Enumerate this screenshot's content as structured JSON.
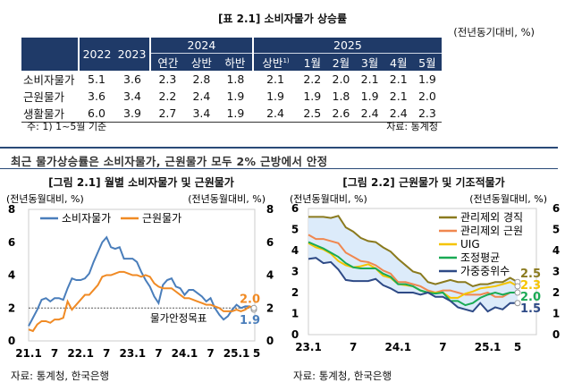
{
  "table": {
    "title": "[표 2.1] 소비자물가 상승률",
    "unit": "(전년동기대비, %)",
    "header": {
      "y2022": "2022",
      "y2023": "2023",
      "y2024": "2024",
      "y2025": "2025",
      "sub2024": [
        "연간",
        "상반",
        "하반"
      ],
      "sub2025": [
        "상반",
        "1월",
        "2월",
        "3월",
        "4월",
        "5월"
      ],
      "sup": "1)"
    },
    "rows": [
      {
        "label": "소비자물가",
        "values": [
          "5.1",
          "3.6",
          "2.3",
          "2.8",
          "1.8",
          "2.1",
          "2.2",
          "2.0",
          "2.1",
          "2.1",
          "1.9"
        ]
      },
      {
        "label": "근원물가",
        "values": [
          "3.6",
          "3.4",
          "2.2",
          "2.4",
          "1.9",
          "1.9",
          "1.9",
          "1.8",
          "1.9",
          "2.1",
          "2.0"
        ]
      },
      {
        "label": "생활물가",
        "values": [
          "6.0",
          "3.9",
          "2.7",
          "3.4",
          "1.9",
          "2.4",
          "2.5",
          "2.6",
          "2.4",
          "2.4",
          "2.3"
        ]
      }
    ],
    "note": "주: 1) 1~5월 기준",
    "source": "자료: 통계청"
  },
  "section_title": "최근 물가상승률은 소비자물가, 근원물가 모두 2% 근방에서 안정",
  "chart_data": [
    {
      "type": "line",
      "title": "[그림 2.1] 월별 소비자물가 및 근원물가",
      "ylabel_left": "(전년동월대비, %)",
      "ylabel_right": "(전년동월대비, %)",
      "ylim": [
        0,
        8
      ],
      "yticks": [
        "0",
        "2",
        "4",
        "6",
        "8"
      ],
      "x_start": "2021-01",
      "x_end": "2025-05",
      "xtick_labels": [
        "21.1",
        "7",
        "22.1",
        "7",
        "23.1",
        "7",
        "24.1",
        "7",
        "25.1",
        "5"
      ],
      "reference_line": {
        "value": 2,
        "label": "물가안정목표"
      },
      "legend": "top-left",
      "series": [
        {
          "name": "소비자물가",
          "color": "#4a7ebb",
          "end_label": "1.9",
          "values": [
            0.9,
            1.4,
            1.9,
            2.5,
            2.6,
            2.4,
            2.6,
            2.6,
            2.5,
            3.2,
            3.8,
            3.7,
            3.7,
            3.8,
            4.1,
            4.8,
            5.4,
            6.0,
            6.3,
            5.7,
            5.6,
            5.7,
            5.0,
            5.0,
            5.0,
            4.8,
            4.2,
            3.7,
            3.3,
            2.7,
            2.3,
            3.4,
            3.7,
            3.8,
            3.3,
            3.2,
            2.8,
            3.1,
            3.1,
            2.9,
            2.7,
            2.4,
            2.6,
            2.0,
            1.6,
            1.3,
            1.5,
            1.9,
            2.2,
            2.0,
            2.1,
            2.1,
            1.9
          ]
        },
        {
          "name": "근원물가",
          "color": "#f08a24",
          "end_label": "2.0",
          "values": [
            0.7,
            0.6,
            1.0,
            1.2,
            1.2,
            1.1,
            1.3,
            1.3,
            1.4,
            2.4,
            1.9,
            2.2,
            2.5,
            2.8,
            2.8,
            3.1,
            3.4,
            3.9,
            4.0,
            4.0,
            4.1,
            4.2,
            4.2,
            4.1,
            4.0,
            4.0,
            3.9,
            4.0,
            3.9,
            3.5,
            3.3,
            3.2,
            3.2,
            3.2,
            3.0,
            2.8,
            2.6,
            2.6,
            2.5,
            2.4,
            2.3,
            2.2,
            2.2,
            2.1,
            2.0,
            1.8,
            1.8,
            1.8,
            1.9,
            1.8,
            1.9,
            2.1,
            2.0
          ]
        }
      ],
      "source": "자료: 통계청, 한국은행"
    },
    {
      "type": "line",
      "title": "[그림 2.2] 근원물가 및 기조적물가",
      "ylabel_left": "(전년동월대비, %)",
      "ylabel_right": "(전년동월대비, %)",
      "ylim": [
        0,
        6
      ],
      "yticks": [
        "0",
        "1",
        "2",
        "3",
        "4",
        "5",
        "6"
      ],
      "x_start": "2023-01",
      "x_end": "2025-05",
      "xtick_labels": [
        "23.1",
        "7",
        "24.1",
        "7",
        "25.1",
        "5"
      ],
      "band": "range between series shaded light blue",
      "legend": "top-right",
      "series": [
        {
          "name": "관리제외 경직",
          "color": "#8a7a1e",
          "end_label": "2.5",
          "values": [
            5.6,
            5.6,
            5.6,
            5.55,
            5.65,
            5.1,
            4.9,
            4.6,
            4.45,
            4.4,
            4.15,
            3.95,
            3.6,
            3.3,
            3.0,
            2.9,
            2.5,
            2.4,
            2.5,
            2.6,
            2.5,
            2.5,
            2.3,
            2.4,
            2.4,
            2.5,
            2.5,
            2.7,
            2.5
          ]
        },
        {
          "name": "관리제외 근원",
          "color": "#f0874f",
          "end_label": "",
          "values": [
            4.75,
            4.55,
            4.55,
            4.45,
            4.35,
            3.9,
            3.7,
            3.5,
            3.45,
            3.3,
            3.05,
            2.9,
            2.5,
            2.5,
            2.4,
            2.3,
            2.1,
            2.0,
            2.1,
            2.1,
            2.0,
            1.9,
            1.9,
            1.9,
            2.0,
            1.8,
            1.8,
            2.0,
            2.0
          ]
        },
        {
          "name": "UIG",
          "color": "#f5c400",
          "end_label": "2.3",
          "values": [
            4.35,
            4.15,
            4.05,
            3.85,
            3.5,
            3.3,
            3.2,
            3.25,
            3.35,
            3.15,
            2.8,
            2.7,
            2.4,
            2.35,
            2.3,
            2.1,
            2.0,
            2.0,
            2.0,
            1.75,
            1.75,
            1.95,
            2.05,
            2.2,
            2.25,
            2.3,
            2.4,
            2.5,
            2.3
          ]
        },
        {
          "name": "조정평균",
          "color": "#1aaa55",
          "end_label": "2.0",
          "values": [
            4.4,
            4.25,
            4.1,
            3.9,
            3.7,
            3.4,
            3.2,
            3.15,
            3.15,
            3.15,
            2.9,
            2.75,
            2.4,
            2.4,
            2.3,
            2.1,
            2.0,
            1.95,
            2.0,
            1.6,
            1.6,
            1.4,
            1.5,
            1.75,
            1.9,
            2.0,
            1.9,
            2.0,
            2.0
          ]
        },
        {
          "name": "가중중위수",
          "color": "#2e4a86",
          "end_label": "1.5",
          "values": [
            3.6,
            3.65,
            3.4,
            3.45,
            3.1,
            2.6,
            2.55,
            2.55,
            2.55,
            2.65,
            2.35,
            2.2,
            2.0,
            2.0,
            2.0,
            1.9,
            2.0,
            1.8,
            1.8,
            1.6,
            1.3,
            1.2,
            1.1,
            1.5,
            1.1,
            1.3,
            1.2,
            1.5,
            1.5
          ]
        }
      ],
      "source": "자료: 통계청, 한국은행"
    }
  ]
}
